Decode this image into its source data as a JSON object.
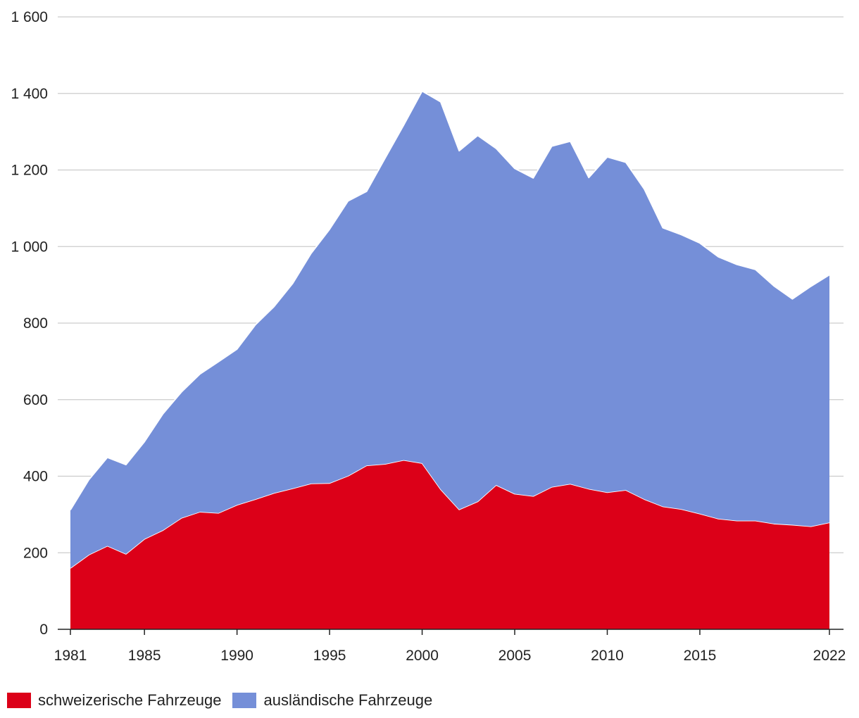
{
  "chart_data": {
    "type": "area",
    "stacked": true,
    "title": "",
    "xlabel": "",
    "ylabel": "",
    "ylim": [
      0,
      1600
    ],
    "yticks": [
      0,
      200,
      400,
      600,
      800,
      1000,
      1200,
      1400,
      1600
    ],
    "ytick_labels": [
      "0",
      "200",
      "400",
      "600",
      "800",
      "1 000",
      "1 200",
      "1 400",
      "1 600"
    ],
    "xlim": [
      1981,
      2022
    ],
    "xticks": [
      1981,
      1985,
      1990,
      1995,
      2000,
      2005,
      2010,
      2015,
      2022
    ],
    "xtick_labels": [
      "1981",
      "1985",
      "1990",
      "1995",
      "2000",
      "2005",
      "2010",
      "2015",
      "2022"
    ],
    "grid": "horizontal",
    "legend_position": "bottom-left",
    "x": [
      1981,
      1982,
      1983,
      1984,
      1985,
      1986,
      1987,
      1988,
      1989,
      1990,
      1991,
      1992,
      1993,
      1994,
      1995,
      1996,
      1997,
      1998,
      1999,
      2000,
      2001,
      2002,
      2003,
      2004,
      2005,
      2006,
      2007,
      2008,
      2009,
      2010,
      2011,
      2012,
      2013,
      2014,
      2015,
      2016,
      2017,
      2018,
      2019,
      2020,
      2021,
      2022
    ],
    "series": [
      {
        "name": "schweizerische Fahrzeuge",
        "color": "#dc0018",
        "values": [
          160,
          195,
          218,
          197,
          236,
          259,
          291,
          307,
          304,
          325,
          340,
          356,
          368,
          381,
          382,
          401,
          428,
          432,
          442,
          434,
          366,
          313,
          334,
          377,
          354,
          348,
          372,
          380,
          367,
          358,
          364,
          340,
          321,
          314,
          302,
          289,
          284,
          284,
          276,
          273,
          269,
          279
        ]
      },
      {
        "name": "ausländische Fahrzeuge",
        "color": "#758fd8",
        "values": [
          152,
          196,
          231,
          233,
          254,
          304,
          329,
          360,
          395,
          407,
          456,
          487,
          535,
          601,
          663,
          718,
          716,
          799,
          875,
          972,
          1012,
          937,
          956,
          879,
          850,
          831,
          890,
          895,
          813,
          876,
          856,
          810,
          728,
          717,
          707,
          684,
          669,
          656,
          621,
          590,
          627,
          647
        ]
      }
    ]
  }
}
